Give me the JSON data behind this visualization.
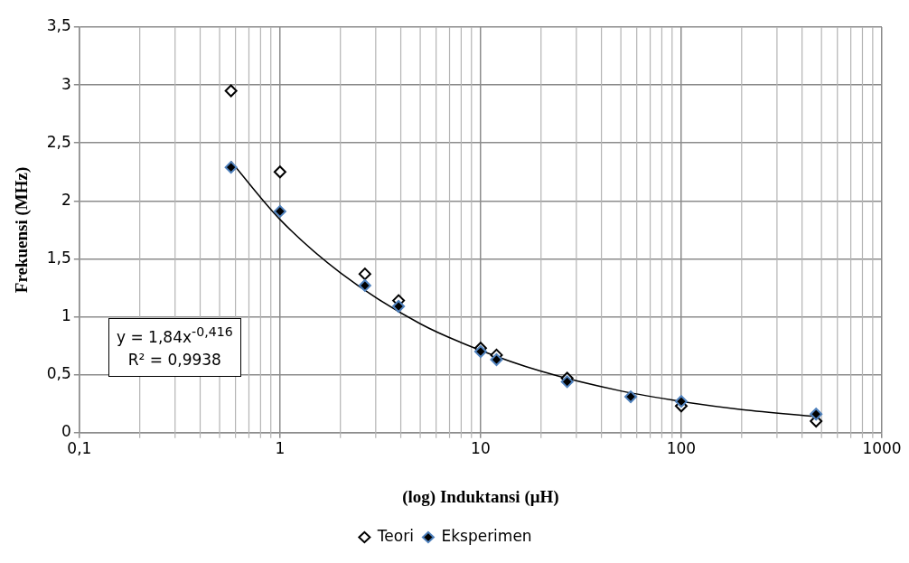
{
  "chart_data": {
    "type": "scatter",
    "xlabel": "(log) Induktansi (μH)",
    "ylabel": "Frekuensi (MHz)",
    "log": "x",
    "xlim": [
      0.1,
      1000
    ],
    "xticks": [
      {
        "value": 0.1,
        "label": "0,1"
      },
      1,
      10,
      100,
      1000
    ],
    "ylim": [
      0,
      3.5
    ],
    "yticks": [
      0,
      {
        "value": 0.5,
        "label": "0,5"
      },
      1,
      {
        "value": 1.5,
        "label": "1,5"
      },
      2,
      {
        "value": 2.5,
        "label": "2,5"
      },
      3,
      {
        "value": 3.5,
        "label": "3,5"
      }
    ],
    "grid": true,
    "legend": "bottom",
    "marker": "diamond",
    "x": [
      0.57,
      1,
      2.65,
      3.9,
      10,
      12,
      27,
      56,
      100,
      470
    ],
    "series": [
      {
        "name": "Teori",
        "color": "#000000",
        "values": [
          2.95,
          2.25,
          1.37,
          1.14,
          0.73,
          0.67,
          0.47,
          null,
          0.23,
          0.1
        ]
      },
      {
        "name": "Eksperimen",
        "color": "#4f81bd",
        "values": [
          2.29,
          1.91,
          1.27,
          1.09,
          0.7,
          0.63,
          0.44,
          0.31,
          0.27,
          0.16
        ]
      },
      {
        "type": "line",
        "color": "#000000",
        "marker": "none",
        "x": [
          0.57,
          1,
          2,
          5,
          10,
          20,
          50,
          100,
          200,
          470
        ],
        "values": [
          2.34,
          1.84,
          1.38,
          0.94,
          0.71,
          0.53,
          0.36,
          0.27,
          0.2,
          0.14
        ]
      }
    ],
    "annotations": [
      "y = 1,84x$^{-0,416}$",
      "R² = 0,9938"
    ]
  }
}
